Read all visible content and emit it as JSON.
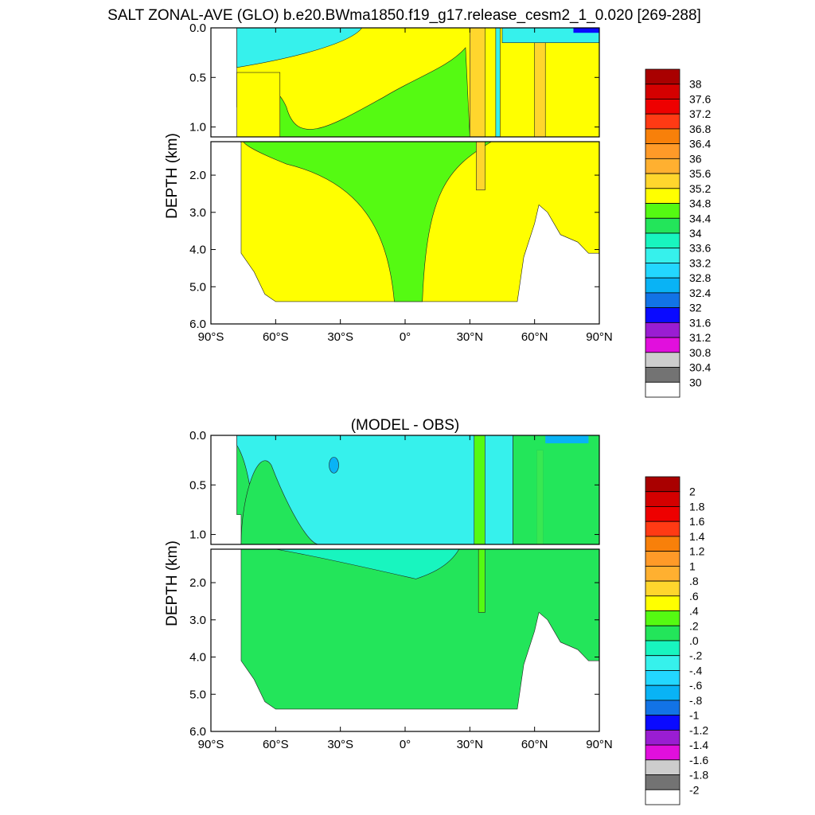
{
  "title": "SALT ZONAL-AVE (GLO) b.e20.BWma1850.f19_g17.release_cesm2_1_0.020 [269-288]",
  "chart_data": [
    {
      "type": "heatmap",
      "title": "",
      "ylabel": "DEPTH (km)",
      "xlim": [
        -90,
        90
      ],
      "ylim_upper_km": [
        0.0,
        1.1
      ],
      "ylim_lower_km": [
        1.1,
        6.0
      ],
      "x_ticks": [
        {
          "value": -90,
          "label": "90°S"
        },
        {
          "value": -60,
          "label": "60°S"
        },
        {
          "value": -30,
          "label": "30°S"
        },
        {
          "value": 0,
          "label": "0°"
        },
        {
          "value": 30,
          "label": "30°N"
        },
        {
          "value": 60,
          "label": "60°N"
        },
        {
          "value": 90,
          "label": "90°N"
        }
      ],
      "y_ticks_upper": [
        {
          "value": 0.0,
          "label": "0.0"
        },
        {
          "value": 0.5,
          "label": "0.5"
        },
        {
          "value": 1.0,
          "label": "1.0"
        }
      ],
      "y_ticks_lower": [
        {
          "value": 2.0,
          "label": "2.0"
        },
        {
          "value": 3.0,
          "label": "3.0"
        },
        {
          "value": 4.0,
          "label": "4.0"
        },
        {
          "value": 5.0,
          "label": "5.0"
        },
        {
          "value": 6.0,
          "label": "6.0"
        }
      ],
      "levels": [
        "30",
        "30.4",
        "30.8",
        "31.2",
        "31.6",
        "32",
        "32.4",
        "32.8",
        "33.2",
        "33.6",
        "34",
        "34.4",
        "34.8",
        "35.2",
        "35.6",
        "36",
        "36.4",
        "36.8",
        "37.2",
        "37.6",
        "38"
      ],
      "colors": [
        "#ffffff",
        "#737373",
        "#cdcdcd",
        "#e10fdd",
        "#9a1dd2",
        "#0a0aff",
        "#1273e6",
        "#09b3f5",
        "#23d7ff",
        "#36f1ec",
        "#18f5bf",
        "#23e55a",
        "#55fa12",
        "#ffff00",
        "#ffd62d",
        "#ffb030",
        "#ff9a28",
        "#f8800a",
        "#ff3a14",
        "#ee0000",
        "#d40000",
        "#a90000"
      ],
      "ocean_fill_color": "#55fa12",
      "upper_layer_fill_color": "#36f1ec",
      "deep_fill_color": "#ffff00",
      "bathymetry_depth_km": [
        {
          "lat": -78,
          "depth": 0.0
        },
        {
          "lat": -76,
          "depth": 4.1
        },
        {
          "lat": -70,
          "depth": 4.6
        },
        {
          "lat": -65,
          "depth": 5.2
        },
        {
          "lat": -60,
          "depth": 5.4
        },
        {
          "lat": -50,
          "depth": 5.4
        },
        {
          "lat": -40,
          "depth": 5.4
        },
        {
          "lat": 0,
          "depth": 5.4
        },
        {
          "lat": 52,
          "depth": 5.4
        },
        {
          "lat": 55,
          "depth": 4.2
        },
        {
          "lat": 60,
          "depth": 3.3
        },
        {
          "lat": 62,
          "depth": 2.8
        },
        {
          "lat": 66,
          "depth": 3.0
        },
        {
          "lat": 72,
          "depth": 3.6
        },
        {
          "lat": 80,
          "depth": 3.8
        },
        {
          "lat": 85,
          "depth": 4.1
        },
        {
          "lat": 90,
          "depth": 4.1
        }
      ]
    },
    {
      "type": "heatmap",
      "title": "(MODEL - OBS)",
      "ylabel": "DEPTH (km)",
      "xlim": [
        -90,
        90
      ],
      "ylim_upper_km": [
        0.0,
        1.1
      ],
      "ylim_lower_km": [
        1.1,
        6.0
      ],
      "x_ticks": [
        {
          "value": -90,
          "label": "90°S"
        },
        {
          "value": -60,
          "label": "60°S"
        },
        {
          "value": -30,
          "label": "30°S"
        },
        {
          "value": 0,
          "label": "0°"
        },
        {
          "value": 30,
          "label": "30°N"
        },
        {
          "value": 60,
          "label": "60°N"
        },
        {
          "value": 90,
          "label": "90°N"
        }
      ],
      "y_ticks_upper": [
        {
          "value": 0.0,
          "label": "0.0"
        },
        {
          "value": 0.5,
          "label": "0.5"
        },
        {
          "value": 1.0,
          "label": "1.0"
        }
      ],
      "y_ticks_lower": [
        {
          "value": 2.0,
          "label": "2.0"
        },
        {
          "value": 3.0,
          "label": "3.0"
        },
        {
          "value": 4.0,
          "label": "4.0"
        },
        {
          "value": 5.0,
          "label": "5.0"
        },
        {
          "value": 6.0,
          "label": "6.0"
        }
      ],
      "levels": [
        "-2",
        "-1.8",
        "-1.6",
        "-1.4",
        "-1.2",
        "-1",
        "-.8",
        "-.6",
        "-.4",
        "-.2",
        ".0",
        ".2",
        ".4",
        ".6",
        ".8",
        "1",
        "1.2",
        "1.4",
        "1.6",
        "1.8",
        "2"
      ],
      "colors": [
        "#ffffff",
        "#737373",
        "#cdcdcd",
        "#e10fdd",
        "#9a1dd2",
        "#0a0aff",
        "#1273e6",
        "#09b3f5",
        "#23d7ff",
        "#36f1ec",
        "#18f5bf",
        "#23e55a",
        "#55fa12",
        "#ffff00",
        "#ffd62d",
        "#ffb030",
        "#ff9a28",
        "#f8800a",
        "#ff3a14",
        "#ee0000",
        "#d40000",
        "#a90000"
      ],
      "ocean_fill_color": "#23e55a",
      "upper_layer_fill_color": "#18f5bf",
      "deep_fill_color": "#23e55a",
      "bathymetry_depth_km": [
        {
          "lat": -78,
          "depth": 0.0
        },
        {
          "lat": -76,
          "depth": 4.1
        },
        {
          "lat": -70,
          "depth": 4.6
        },
        {
          "lat": -65,
          "depth": 5.2
        },
        {
          "lat": -60,
          "depth": 5.4
        },
        {
          "lat": -50,
          "depth": 5.4
        },
        {
          "lat": -40,
          "depth": 5.4
        },
        {
          "lat": 0,
          "depth": 5.4
        },
        {
          "lat": 52,
          "depth": 5.4
        },
        {
          "lat": 55,
          "depth": 4.2
        },
        {
          "lat": 60,
          "depth": 3.3
        },
        {
          "lat": 62,
          "depth": 2.8
        },
        {
          "lat": 66,
          "depth": 3.0
        },
        {
          "lat": 72,
          "depth": 3.6
        },
        {
          "lat": 80,
          "depth": 3.8
        },
        {
          "lat": 85,
          "depth": 4.1
        },
        {
          "lat": 90,
          "depth": 4.1
        }
      ]
    }
  ]
}
